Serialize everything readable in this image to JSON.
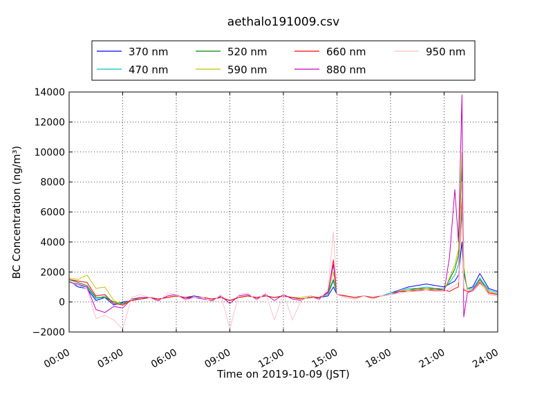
{
  "chart_data": {
    "type": "line",
    "title": "aethalo191009.csv",
    "xlabel": "Time on 2019-10-09 (JST)",
    "ylabel": "BC Concentration (ng/m³)",
    "xlim": [
      0,
      24
    ],
    "ylim": [
      -2000,
      14000
    ],
    "x_ticks": [
      0,
      3,
      6,
      9,
      12,
      15,
      18,
      21,
      24
    ],
    "x_tick_labels": [
      "00:00",
      "03:00",
      "06:00",
      "09:00",
      "12:00",
      "15:00",
      "18:00",
      "21:00",
      "24:00"
    ],
    "y_ticks": [
      -2000,
      0,
      2000,
      4000,
      6000,
      8000,
      10000,
      12000,
      14000
    ],
    "y_tick_labels": [
      "−2000",
      "0",
      "2000",
      "4000",
      "6000",
      "8000",
      "10000",
      "12000",
      "14000"
    ],
    "grid": true,
    "legend_position": "top",
    "x_hours": [
      0.0,
      0.5,
      1.0,
      1.5,
      2.0,
      2.5,
      3.0,
      3.5,
      4.0,
      4.5,
      5.0,
      5.5,
      6.0,
      6.5,
      7.0,
      7.5,
      8.0,
      8.5,
      9.0,
      9.5,
      10.0,
      10.5,
      11.0,
      11.5,
      12.0,
      12.5,
      13.0,
      13.5,
      14.0,
      14.5,
      14.8,
      15.0,
      15.5,
      16.0,
      16.5,
      17.0,
      17.5,
      18.0,
      18.5,
      19.0,
      19.5,
      20.0,
      20.5,
      21.0,
      21.3,
      21.6,
      21.8,
      22.0,
      22.1,
      22.3,
      22.6,
      23.0,
      23.5,
      24.0
    ],
    "series": [
      {
        "name": "370 nm",
        "color": "#0000ff",
        "values": [
          1400,
          1000,
          900,
          100,
          300,
          -200,
          0,
          100,
          200,
          300,
          200,
          300,
          400,
          300,
          400,
          300,
          200,
          300,
          100,
          300,
          400,
          300,
          400,
          300,
          400,
          300,
          200,
          300,
          300,
          400,
          1000,
          500,
          400,
          300,
          400,
          300,
          400,
          600,
          800,
          1000,
          1100,
          1200,
          1100,
          1000,
          1200,
          1400,
          1800,
          4000,
          1900,
          900,
          1000,
          1900,
          900,
          700
        ]
      },
      {
        "name": "470 nm",
        "color": "#00c0c0",
        "values": [
          1400,
          1100,
          1000,
          200,
          400,
          -100,
          -100,
          100,
          300,
          300,
          200,
          300,
          400,
          300,
          300,
          300,
          200,
          300,
          100,
          300,
          400,
          300,
          400,
          300,
          400,
          300,
          200,
          300,
          300,
          500,
          1400,
          500,
          400,
          300,
          400,
          300,
          400,
          600,
          700,
          900,
          900,
          1000,
          900,
          900,
          1300,
          1800,
          2500,
          6000,
          2100,
          900,
          900,
          1600,
          800,
          600
        ]
      },
      {
        "name": "520 nm",
        "color": "#008000",
        "values": [
          1500,
          1300,
          1100,
          300,
          300,
          0,
          -100,
          100,
          200,
          300,
          200,
          300,
          400,
          300,
          300,
          300,
          200,
          300,
          100,
          300,
          400,
          300,
          400,
          300,
          400,
          300,
          200,
          300,
          300,
          600,
          1500,
          500,
          400,
          300,
          400,
          300,
          400,
          500,
          700,
          800,
          900,
          900,
          900,
          800,
          1500,
          2200,
          3100,
          9000,
          2300,
          800,
          800,
          1500,
          700,
          500
        ]
      },
      {
        "name": "590 nm",
        "color": "#c0c000",
        "values": [
          1600,
          1500,
          1800,
          900,
          1000,
          100,
          -200,
          200,
          300,
          300,
          200,
          300,
          400,
          300,
          300,
          300,
          200,
          300,
          100,
          300,
          400,
          300,
          400,
          300,
          400,
          300,
          300,
          400,
          300,
          600,
          2000,
          500,
          400,
          300,
          400,
          300,
          400,
          500,
          700,
          800,
          800,
          900,
          800,
          800,
          1600,
          2500,
          3500,
          10000,
          2400,
          800,
          800,
          1400,
          700,
          500
        ]
      },
      {
        "name": "660 nm",
        "color": "#ff0000",
        "values": [
          1500,
          1400,
          1300,
          400,
          500,
          -100,
          -200,
          100,
          200,
          300,
          200,
          300,
          400,
          300,
          300,
          300,
          200,
          300,
          100,
          300,
          400,
          300,
          400,
          300,
          400,
          300,
          200,
          300,
          300,
          600,
          2800,
          500,
          400,
          300,
          400,
          300,
          400,
          500,
          700,
          700,
          800,
          800,
          800,
          800,
          700,
          900,
          1000,
          7000,
          800,
          700,
          700,
          1300,
          600,
          500
        ]
      },
      {
        "name": "880 nm",
        "color": "#c000c0",
        "values": [
          1300,
          1200,
          1000,
          -500,
          -700,
          -300,
          -400,
          200,
          300,
          300,
          100,
          400,
          500,
          200,
          300,
          200,
          100,
          400,
          -100,
          400,
          500,
          200,
          500,
          100,
          500,
          200,
          100,
          400,
          200,
          700,
          2500,
          500,
          300,
          200,
          400,
          200,
          400,
          500,
          600,
          700,
          700,
          800,
          700,
          700,
          3000,
          7500,
          4000,
          13800,
          -1000,
          600,
          800,
          1400,
          500,
          400
        ]
      },
      {
        "name": "950 nm",
        "color": "#ffc0cb",
        "values": [
          1300,
          1100,
          900,
          -1100,
          -900,
          -1200,
          -1800,
          300,
          500,
          300,
          0,
          600,
          500,
          100,
          300,
          300,
          0,
          500,
          -1800,
          500,
          600,
          100,
          600,
          -1200,
          600,
          -1200,
          100,
          400,
          100,
          900,
          4700,
          500,
          300,
          200,
          400,
          200,
          400,
          500,
          600,
          700,
          700,
          800,
          700,
          700,
          900,
          1100,
          1300,
          8000,
          900,
          800,
          700,
          1400,
          500,
          400
        ]
      }
    ]
  }
}
